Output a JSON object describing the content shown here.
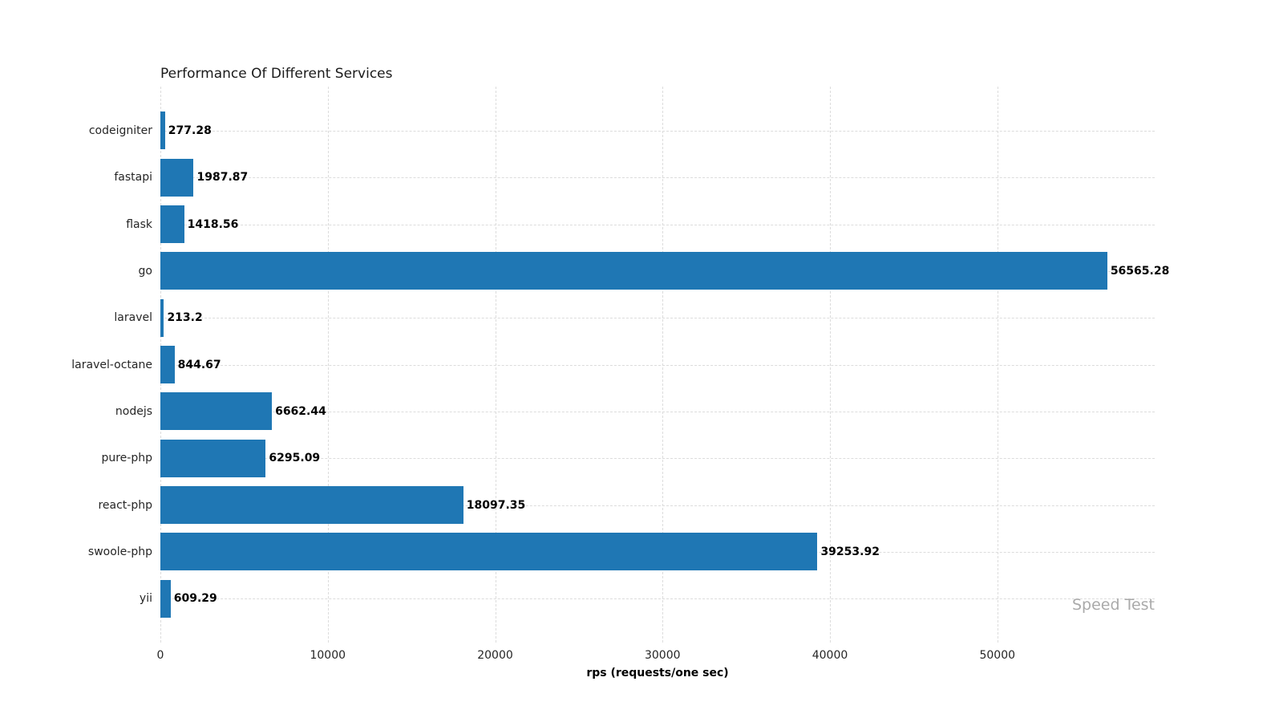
{
  "chart_data": {
    "type": "bar",
    "orientation": "horizontal",
    "title": "Performance Of Different Services",
    "xlabel": "rps (requests/one sec)",
    "ylabel": "",
    "watermark": "Speed Test",
    "categories": [
      "codeigniter",
      "fastapi",
      "flask",
      "go",
      "laravel",
      "laravel-octane",
      "nodejs",
      "pure-php",
      "react-php",
      "swoole-php",
      "yii"
    ],
    "values": [
      277.28,
      1987.87,
      1418.56,
      56565.28,
      213.2,
      844.67,
      6662.44,
      6295.09,
      18097.35,
      39253.92,
      609.29
    ],
    "value_labels": [
      "277.28",
      "1987.87",
      "1418.56",
      "56565.28",
      "213.2",
      "844.67",
      "6662.44",
      "6295.09",
      "18097.35",
      "39253.92",
      "609.29"
    ],
    "xticks": [
      0,
      10000,
      20000,
      30000,
      40000,
      50000
    ],
    "xtick_labels": [
      "0",
      "10000",
      "20000",
      "30000",
      "40000",
      "50000"
    ],
    "xlim": [
      0,
      59400
    ],
    "grid": true,
    "grid_style": "dashed",
    "legend": null,
    "colors": {
      "bar": "#1f77b4",
      "grid": "#dcdcdc",
      "text": "#262626",
      "value_label": "#000000",
      "watermark": "#aaaaaa",
      "background": "#ffffff"
    }
  }
}
